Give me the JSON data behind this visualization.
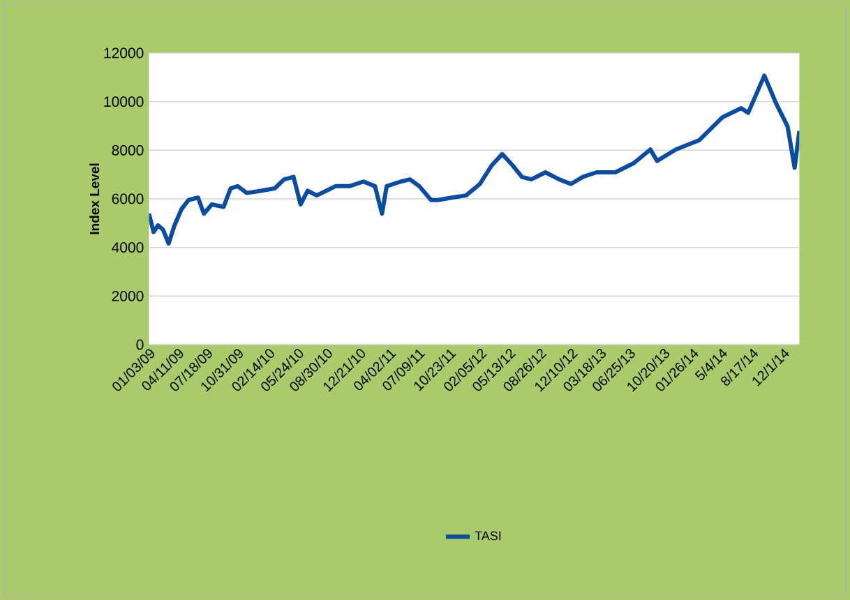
{
  "chart_data": {
    "type": "line",
    "ylabel": "Index Level",
    "x": [
      "2009-01-03",
      "2009-01-19",
      "2009-02-03",
      "2009-02-20",
      "2009-03-11",
      "2009-03-31",
      "2009-04-24",
      "2009-05-18",
      "2009-06-19",
      "2009-07-09",
      "2009-08-05",
      "2009-09-14",
      "2009-10-08",
      "2009-11-01",
      "2009-12-02",
      "2010-01-19",
      "2010-03-07",
      "2010-04-08",
      "2010-05-10",
      "2010-06-03",
      "2010-06-27",
      "2010-07-28",
      "2010-08-29",
      "2010-09-30",
      "2010-11-16",
      "2011-01-03",
      "2011-02-11",
      "2011-03-07",
      "2011-03-23",
      "2011-05-10",
      "2011-06-10",
      "2011-07-12",
      "2011-08-21",
      "2011-09-13",
      "2011-10-31",
      "2011-12-18",
      "2012-02-03",
      "2012-03-14",
      "2012-04-19",
      "2012-05-25",
      "2012-06-25",
      "2012-07-27",
      "2012-09-13",
      "2012-10-30",
      "2012-12-09",
      "2013-01-18",
      "2013-03-06",
      "2013-05-09",
      "2013-07-11",
      "2013-09-05",
      "2013-09-28",
      "2013-12-01",
      "2014-02-18",
      "2014-04-07",
      "2014-05-09",
      "2014-07-11",
      "2014-08-04",
      "2014-09-28",
      "2014-11-07",
      "2014-12-16",
      "2015-01-09",
      "2015-01-25"
    ],
    "series": [
      {
        "name": "TASI",
        "color": "#0b4ca3",
        "values": [
          5390,
          4630,
          4910,
          4730,
          4160,
          4910,
          5580,
          5950,
          6050,
          5390,
          5770,
          5670,
          6430,
          6520,
          6240,
          6330,
          6430,
          6800,
          6900,
          5770,
          6330,
          6140,
          6330,
          6520,
          6520,
          6710,
          6520,
          5390,
          6520,
          6710,
          6800,
          6520,
          5950,
          5950,
          6050,
          6140,
          6610,
          7370,
          7840,
          7370,
          6900,
          6800,
          7090,
          6800,
          6610,
          6900,
          7090,
          7090,
          7470,
          8030,
          7560,
          8030,
          8410,
          8980,
          9360,
          9730,
          9540,
          11070,
          9920,
          8980,
          7280,
          8790
        ]
      }
    ],
    "xlim": [
      "2009-01-03",
      "2015-01-25"
    ],
    "xticks": [
      {
        "value": "2009-01-03",
        "label": "01/03/09"
      },
      {
        "value": "2009-04-11",
        "label": "04/11/09"
      },
      {
        "value": "2009-07-18",
        "label": "07/18/09"
      },
      {
        "value": "2009-10-31",
        "label": "10/31/09"
      },
      {
        "value": "2010-02-14",
        "label": "02/14/10"
      },
      {
        "value": "2010-05-24",
        "label": "05/24/10"
      },
      {
        "value": "2010-08-30",
        "label": "08/30/10"
      },
      {
        "value": "2010-12-21",
        "label": "12/21/10"
      },
      {
        "value": "2011-04-02",
        "label": "04/02/11"
      },
      {
        "value": "2011-07-09",
        "label": "07/09/11"
      },
      {
        "value": "2011-10-23",
        "label": "10/23/11"
      },
      {
        "value": "2012-02-05",
        "label": "02/05/12"
      },
      {
        "value": "2012-05-13",
        "label": "05/13/12"
      },
      {
        "value": "2012-08-26",
        "label": "08/26/12"
      },
      {
        "value": "2012-12-10",
        "label": "12/10/12"
      },
      {
        "value": "2013-03-18",
        "label": "03/18/13"
      },
      {
        "value": "2013-06-25",
        "label": "06/25/13"
      },
      {
        "value": "2013-10-20",
        "label": "10/20/13"
      },
      {
        "value": "2014-01-26",
        "label": "01/26/14"
      },
      {
        "value": "2014-05-04",
        "label": "5/4/14"
      },
      {
        "value": "2014-08-17",
        "label": "8/17/14"
      },
      {
        "value": "2014-12-01",
        "label": "12/1/14"
      }
    ],
    "ylim": [
      0,
      12000
    ],
    "yticks": [
      0,
      2000,
      4000,
      6000,
      8000,
      10000,
      12000
    ],
    "grid": "y",
    "legend": "bottom",
    "marker": "none",
    "line_style": "solid"
  }
}
